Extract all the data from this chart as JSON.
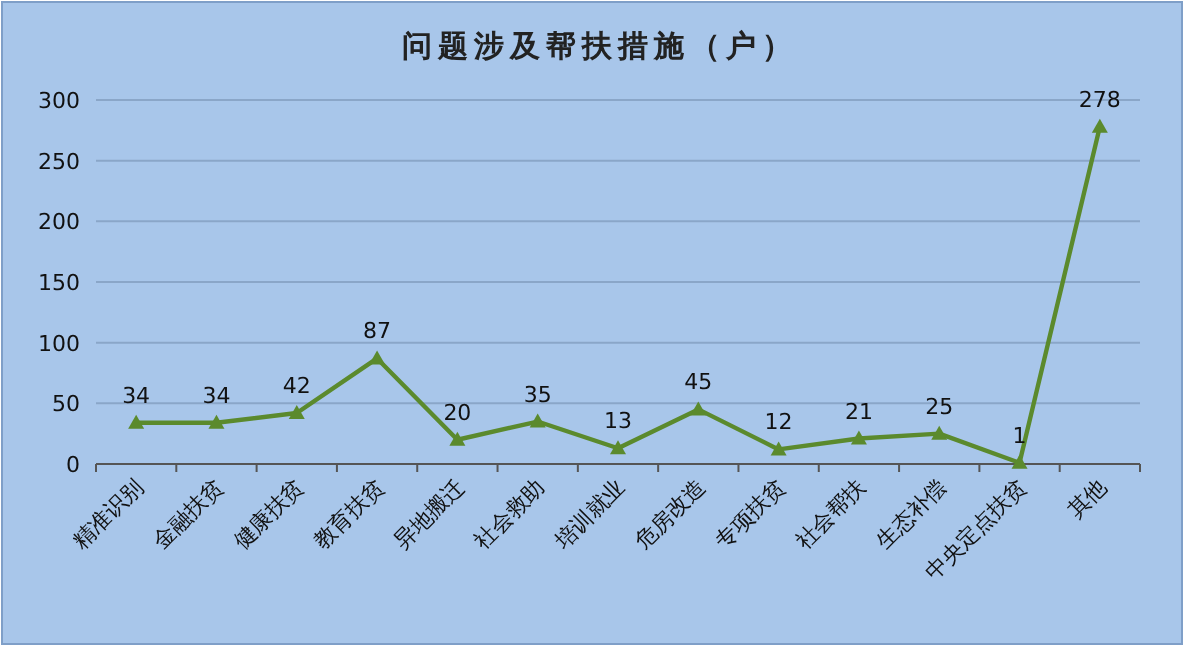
{
  "chart_data": {
    "type": "line",
    "title": "问题涉及帮扶措施（户）",
    "categories": [
      "精准识别",
      "金融扶贫",
      "健康扶贫",
      "教育扶贫",
      "异地搬迁",
      "社会救助",
      "培训就业",
      "危房改造",
      "专项扶贫",
      "社会帮扶",
      "生态补偿",
      "中央定点扶贫",
      "其他"
    ],
    "values": [
      34,
      34,
      42,
      87,
      20,
      35,
      13,
      45,
      12,
      21,
      25,
      1,
      278
    ],
    "color": "#5b8a2d",
    "ylim": [
      0,
      300
    ],
    "yticks": [
      0,
      50,
      100,
      150,
      200,
      250,
      300
    ],
    "grid": "y",
    "marker": "triangle",
    "data_labels": true
  }
}
